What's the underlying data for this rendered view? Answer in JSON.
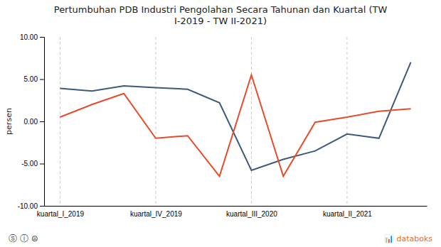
{
  "chart_data": {
    "type": "line",
    "title": "Pertumbuhan PDB Industri Pengolahan Secara Tahunan dan Kuartal (TW\nI-2019 - TW II-2021)",
    "y_label": "persen",
    "categories": [
      "kuartal_I_2019",
      null,
      null,
      "kuartal_IV_2019",
      null,
      null,
      "kuartal_III_2020",
      null,
      null,
      "kuartal_II_2021",
      null,
      null
    ],
    "series": [
      {
        "color": "#3d5a7a",
        "values": [
          3.9,
          3.6,
          4.2,
          4.0,
          3.8,
          2.2,
          -5.8,
          -4.5,
          -3.5,
          -1.5,
          -2.0,
          7.0
        ]
      },
      {
        "color": "#e84b2a",
        "values": [
          0.5,
          2.0,
          3.3,
          -2.0,
          -1.7,
          -6.5,
          5.5,
          -6.5,
          -0.1,
          0.5,
          1.2,
          1.5
        ]
      }
    ],
    "ylim": [
      -10.0,
      10.0
    ],
    "yticks": [
      {
        "value": -10.0,
        "label": "-10.00"
      },
      {
        "value": -5.0,
        "label": "-5.00"
      },
      {
        "value": 0.0,
        "label": "0.00"
      },
      {
        "value": 5.0,
        "label": "5.00"
      },
      {
        "value": 10.0,
        "label": "10.00"
      }
    ],
    "grid": true,
    "annotations": [
      "ⓢ ⓘ ⊜",
      "📊 databoks"
    ]
  }
}
